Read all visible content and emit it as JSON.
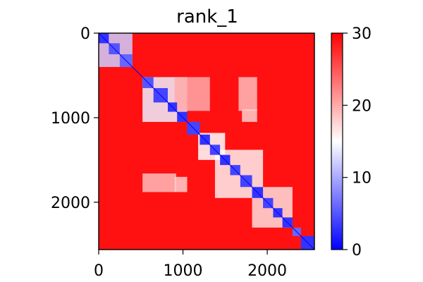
{
  "chart_data": {
    "type": "heatmap",
    "title": "rank_1",
    "matrix_size": 2560,
    "xlim": [
      0,
      2560
    ],
    "ylim": [
      0,
      2560
    ],
    "y_inverted": true,
    "x_ticks": [
      {
        "value": 0,
        "label": "0"
      },
      {
        "value": 1000,
        "label": "1000"
      },
      {
        "value": 2000,
        "label": "2000"
      }
    ],
    "y_ticks": [
      {
        "value": 0,
        "label": "0"
      },
      {
        "value": 1000,
        "label": "1000"
      },
      {
        "value": 2000,
        "label": "2000"
      }
    ],
    "colorbar": {
      "min": 0,
      "max": 30,
      "colormap": "bwr",
      "colors": {
        "low": "#0000ff",
        "mid": "#ffffff",
        "high": "#ff0000"
      },
      "ticks": [
        {
          "value": 0,
          "label": "0"
        },
        {
          "value": 10,
          "label": "10"
        },
        {
          "value": 20,
          "label": "20"
        },
        {
          "value": 30,
          "label": "30"
        }
      ]
    },
    "background_value": 29,
    "diagonal_blocks": [
      {
        "start": 0,
        "end": 120,
        "value": 3
      },
      {
        "start": 120,
        "end": 250,
        "value": 5
      },
      {
        "start": 250,
        "end": 400,
        "value": 6
      },
      {
        "start": 520,
        "end": 650,
        "value": 5
      },
      {
        "start": 650,
        "end": 820,
        "value": 4
      },
      {
        "start": 820,
        "end": 930,
        "value": 3
      },
      {
        "start": 930,
        "end": 1050,
        "value": 3
      },
      {
        "start": 1050,
        "end": 1200,
        "value": 4
      },
      {
        "start": 1200,
        "end": 1320,
        "value": 3
      },
      {
        "start": 1320,
        "end": 1440,
        "value": 4
      },
      {
        "start": 1440,
        "end": 1560,
        "value": 3
      },
      {
        "start": 1560,
        "end": 1680,
        "value": 4
      },
      {
        "start": 1680,
        "end": 1820,
        "value": 4
      },
      {
        "start": 1820,
        "end": 1950,
        "value": 3
      },
      {
        "start": 1950,
        "end": 2070,
        "value": 4
      },
      {
        "start": 2070,
        "end": 2180,
        "value": 3
      },
      {
        "start": 2180,
        "end": 2300,
        "value": 3
      },
      {
        "start": 2300,
        "end": 2400,
        "value": 6
      },
      {
        "start": 2400,
        "end": 2560,
        "value": 3
      }
    ],
    "off_diagonal_regions": [
      {
        "x": [
          0,
          400
        ],
        "y": [
          0,
          400
        ],
        "value": 12
      },
      {
        "x": [
          520,
          1050
        ],
        "y": [
          520,
          1050
        ],
        "value": 14
      },
      {
        "x": [
          900,
          1320
        ],
        "y": [
          520,
          920
        ],
        "value": 20
      },
      {
        "x": [
          1660,
          1880
        ],
        "y": [
          520,
          920
        ],
        "value": 19
      },
      {
        "x": [
          520,
          920
        ],
        "y": [
          1660,
          1880
        ],
        "value": 19
      },
      {
        "x": [
          1380,
          1950
        ],
        "y": [
          1380,
          1950
        ],
        "value": 16
      },
      {
        "x": [
          1700,
          1880
        ],
        "y": [
          900,
          1050
        ],
        "value": 18
      },
      {
        "x": [
          900,
          1050
        ],
        "y": [
          1700,
          1880
        ],
        "value": 18
      },
      {
        "x": [
          1820,
          2300
        ],
        "y": [
          1820,
          2300
        ],
        "value": 17
      },
      {
        "x": [
          1180,
          1500
        ],
        "y": [
          1180,
          1500
        ],
        "value": 15
      }
    ],
    "grid": false
  }
}
